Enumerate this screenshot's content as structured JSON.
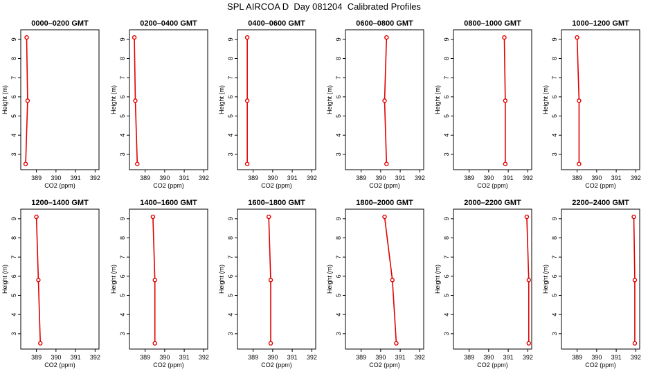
{
  "title": "SPL AIRCOA D  Day 081204  Calibrated Profiles",
  "colors": {
    "line": "#e00000",
    "marker": "#e00000",
    "axis": "#000000"
  },
  "axes": {
    "xlabel": "CO2 (ppm)",
    "ylabel": "Height (m)",
    "xlim": [
      388.2,
      392.2
    ],
    "ylim": [
      2.2,
      9.5
    ],
    "xticks": [
      "389",
      "390",
      "391",
      "392"
    ],
    "yticks": [
      "3",
      "4",
      "5",
      "6",
      "7",
      "8",
      "9"
    ]
  },
  "chart_data": [
    {
      "type": "line",
      "title": "0000–0200 GMT",
      "xlabel": "CO2 (ppm)",
      "ylabel": "Height (m)",
      "xlim": [
        388.2,
        392.2
      ],
      "ylim": [
        2.2,
        9.5
      ],
      "x": [
        388.45,
        388.55,
        388.5
      ],
      "y": [
        2.5,
        5.8,
        9.1
      ]
    },
    {
      "type": "line",
      "title": "0200–0400 GMT",
      "xlabel": "CO2 (ppm)",
      "ylabel": "Height (m)",
      "xlim": [
        388.2,
        392.2
      ],
      "ylim": [
        2.2,
        9.5
      ],
      "x": [
        388.6,
        388.5,
        388.45
      ],
      "y": [
        2.5,
        5.8,
        9.1
      ]
    },
    {
      "type": "line",
      "title": "0400–0600 GMT",
      "xlabel": "CO2 (ppm)",
      "ylabel": "Height (m)",
      "xlim": [
        388.2,
        392.2
      ],
      "ylim": [
        2.2,
        9.5
      ],
      "x": [
        388.7,
        388.7,
        388.7
      ],
      "y": [
        2.5,
        5.8,
        9.1
      ]
    },
    {
      "type": "line",
      "title": "0600–0800 GMT",
      "xlabel": "CO2 (ppm)",
      "ylabel": "Height (m)",
      "xlim": [
        388.2,
        392.2
      ],
      "ylim": [
        2.2,
        9.5
      ],
      "x": [
        390.3,
        390.2,
        390.3
      ],
      "y": [
        2.5,
        5.8,
        9.1
      ]
    },
    {
      "type": "line",
      "title": "0800–1000 GMT",
      "xlabel": "CO2 (ppm)",
      "ylabel": "Height (m)",
      "xlim": [
        388.2,
        392.2
      ],
      "ylim": [
        2.2,
        9.5
      ],
      "x": [
        390.85,
        390.85,
        390.8
      ],
      "y": [
        2.5,
        5.8,
        9.1
      ]
    },
    {
      "type": "line",
      "title": "1000–1200 GMT",
      "xlabel": "CO2 (ppm)",
      "ylabel": "Height (m)",
      "xlim": [
        388.2,
        392.2
      ],
      "ylim": [
        2.2,
        9.5
      ],
      "x": [
        389.1,
        389.1,
        389.0
      ],
      "y": [
        2.5,
        5.8,
        9.1
      ]
    },
    {
      "type": "line",
      "title": "1200–1400 GMT",
      "xlabel": "CO2 (ppm)",
      "ylabel": "Height (m)",
      "xlim": [
        388.2,
        392.2
      ],
      "ylim": [
        2.2,
        9.5
      ],
      "x": [
        389.2,
        389.1,
        389.0
      ],
      "y": [
        2.5,
        5.8,
        9.1
      ]
    },
    {
      "type": "line",
      "title": "1400–1600 GMT",
      "xlabel": "CO2 (ppm)",
      "ylabel": "Height (m)",
      "xlim": [
        388.2,
        392.2
      ],
      "ylim": [
        2.2,
        9.5
      ],
      "x": [
        389.5,
        389.5,
        389.4
      ],
      "y": [
        2.5,
        5.8,
        9.1
      ]
    },
    {
      "type": "line",
      "title": "1600–1800 GMT",
      "xlabel": "CO2 (ppm)",
      "ylabel": "Height (m)",
      "xlim": [
        388.2,
        392.2
      ],
      "ylim": [
        2.2,
        9.5
      ],
      "x": [
        389.9,
        389.9,
        389.8
      ],
      "y": [
        2.5,
        5.8,
        9.1
      ]
    },
    {
      "type": "line",
      "title": "1800–2000 GMT",
      "xlabel": "CO2 (ppm)",
      "ylabel": "Height (m)",
      "xlim": [
        388.2,
        392.2
      ],
      "ylim": [
        2.2,
        9.5
      ],
      "x": [
        390.8,
        390.6,
        390.2
      ],
      "y": [
        2.5,
        5.8,
        9.1
      ]
    },
    {
      "type": "line",
      "title": "2000–2200 GMT",
      "xlabel": "CO2 (ppm)",
      "ylabel": "Height (m)",
      "xlim": [
        388.2,
        392.2
      ],
      "ylim": [
        2.2,
        9.5
      ],
      "x": [
        392.05,
        392.05,
        391.95
      ],
      "y": [
        2.5,
        5.8,
        9.1
      ]
    },
    {
      "type": "line",
      "title": "2200–2400 GMT",
      "xlabel": "CO2 (ppm)",
      "ylabel": "Height (m)",
      "xlim": [
        388.2,
        392.2
      ],
      "ylim": [
        2.2,
        9.5
      ],
      "x": [
        391.95,
        391.95,
        391.9
      ],
      "y": [
        2.5,
        5.8,
        9.1
      ]
    }
  ]
}
